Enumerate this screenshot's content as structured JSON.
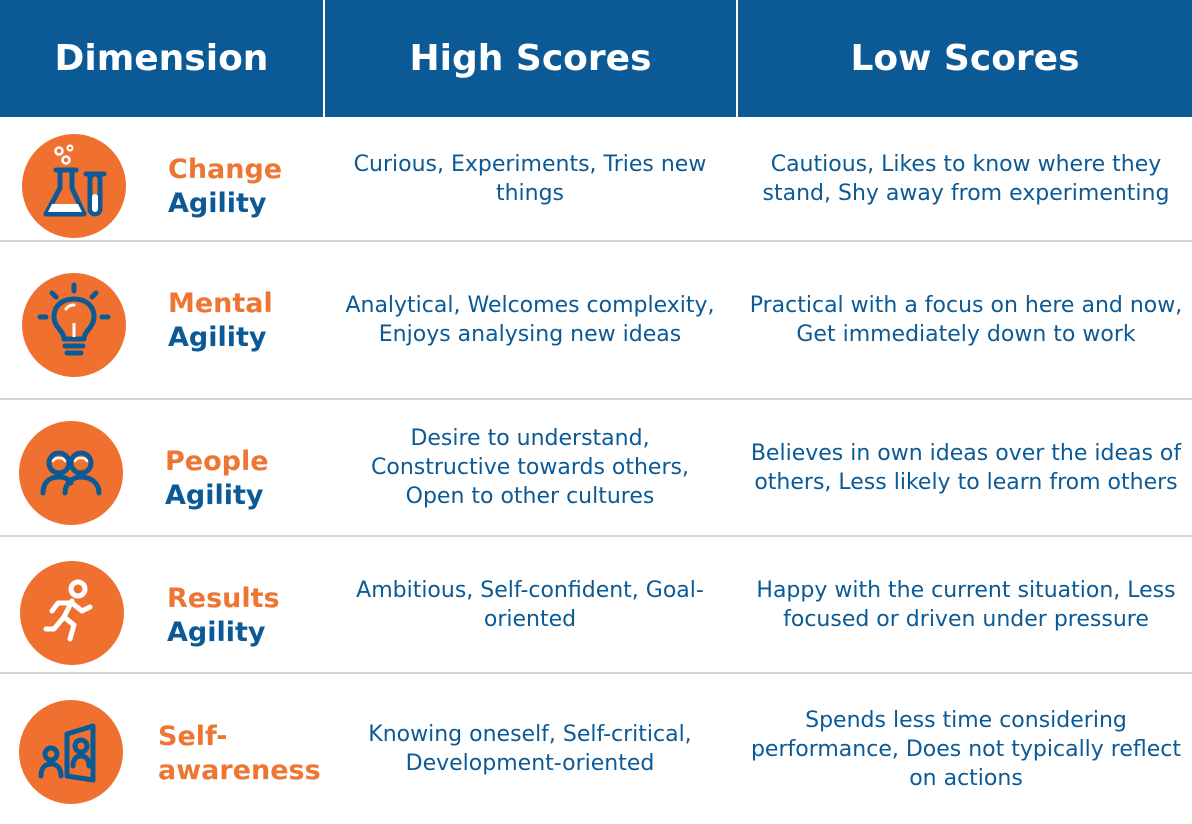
{
  "header": {
    "col1": "Dimension",
    "col2": "High Scores",
    "col3": "Low Scores"
  },
  "rows": [
    {
      "line1": "Change",
      "line2": "Agility",
      "icon": "flask-icon",
      "high": "Curious, Experiments, Tries new things",
      "low": "Cautious, Likes to know where they stand, Shy away from experimenting"
    },
    {
      "line1": "Mental",
      "line2": "Agility",
      "icon": "lightbulb-icon",
      "high": "Analytical, Welcomes complexity, Enjoys analysing new ideas",
      "low": "Practical with a focus on here and now, Get immediately down to work"
    },
    {
      "line1": "People",
      "line2": "Agility",
      "icon": "people-icon",
      "high": "Desire to understand, Constructive towards others, Open to other cultures",
      "low": "Believes in own ideas over the ideas of others, Less likely to learn from others"
    },
    {
      "line1": "Results",
      "line2": "Agility",
      "icon": "running-person-icon",
      "high": "Ambitious, Self-confident, Goal-oriented",
      "low": "Happy with the current situation, Less focused or driven under pressure"
    },
    {
      "line1": "Self-",
      "line2": "awareness",
      "icon": "mirror-person-icon",
      "high": "Knowing oneself, Self-critical, Development-oriented",
      "low": "Spends less time considering performance, Does not typically reflect on actions"
    }
  ],
  "colors": {
    "header_bg": "#0b5a96",
    "accent_orange": "#ee7633",
    "icon_orange": "#f07030",
    "text_blue": "#0b5a96",
    "separator": "#d6d6d6"
  }
}
